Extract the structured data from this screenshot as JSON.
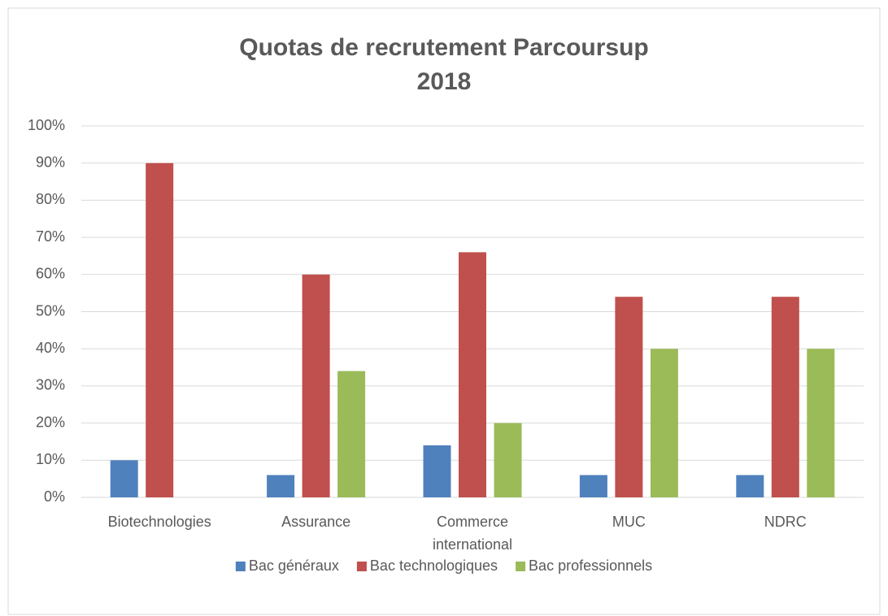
{
  "chart_data": {
    "type": "bar",
    "title": "Quotas de recrutement Parcoursup 2018",
    "categories": [
      "Biotechnologies",
      "Assurance",
      "Commerce international",
      "MUC",
      "NDRC"
    ],
    "series": [
      {
        "name": "Bac généraux",
        "color": "#4f81bd",
        "values": [
          10,
          6,
          14,
          6,
          6
        ]
      },
      {
        "name": "Bac technologiques",
        "color": "#c0504d",
        "values": [
          90,
          60,
          66,
          54,
          54
        ]
      },
      {
        "name": "Bac professionnels",
        "color": "#9bbb59",
        "values": [
          0,
          34,
          20,
          40,
          40
        ]
      }
    ],
    "ylim": [
      0,
      100
    ],
    "yticks": [
      {
        "value": 0,
        "label": "0%"
      },
      {
        "value": 10,
        "label": "10%"
      },
      {
        "value": 20,
        "label": "20%"
      },
      {
        "value": 30,
        "label": "30%"
      },
      {
        "value": 40,
        "label": "40%"
      },
      {
        "value": 50,
        "label": "50%"
      },
      {
        "value": 60,
        "label": "60%"
      },
      {
        "value": 70,
        "label": "70%"
      },
      {
        "value": 80,
        "label": "80%"
      },
      {
        "value": 90,
        "label": "90%"
      },
      {
        "value": 100,
        "label": "100%"
      }
    ],
    "grid": true,
    "legend": "bottom"
  }
}
